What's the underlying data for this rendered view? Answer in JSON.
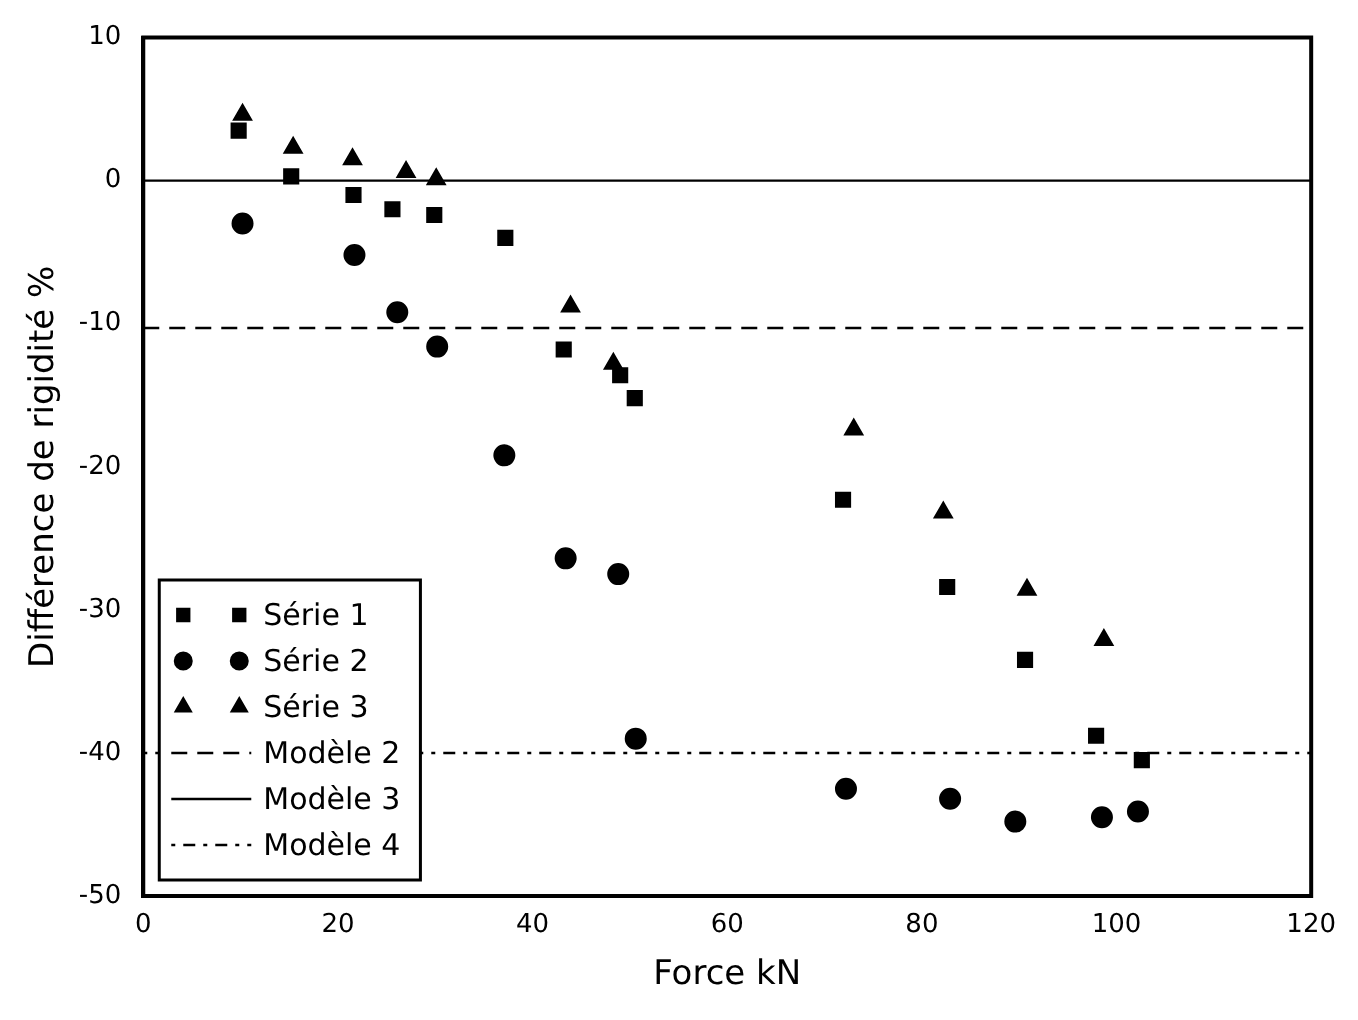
{
  "chart_data": {
    "type": "scatter",
    "xlabel": "Force kN",
    "ylabel": "Différence de rigidité %",
    "xlim": [
      0,
      120
    ],
    "ylim": [
      -50,
      10
    ],
    "xticks": [
      0,
      20,
      40,
      60,
      80,
      100,
      120
    ],
    "yticks": [
      -50,
      -40,
      -30,
      -20,
      -10,
      0,
      10
    ],
    "grid": false,
    "legend": "bottom left",
    "series": [
      {
        "name": "Série 1",
        "color": "#000000",
        "marker": "square",
        "x": [
          9.8,
          15.2,
          21.6,
          25.6,
          29.9,
          37.2,
          43.2,
          49.0,
          50.5,
          71.9,
          82.6,
          90.6,
          97.9,
          102.6
        ],
        "values": [
          3.5,
          0.3,
          -1.0,
          -2.0,
          -2.4,
          -4.0,
          -11.8,
          -13.6,
          -15.2,
          -22.3,
          -28.4,
          -33.5,
          -38.8,
          -40.5
        ]
      },
      {
        "name": "Série 2",
        "color": "#000000",
        "marker": "circle",
        "x": [
          10.2,
          21.7,
          26.1,
          30.2,
          37.1,
          43.4,
          48.8,
          50.6,
          72.2,
          82.9,
          89.6,
          98.5,
          102.2
        ],
        "values": [
          -3.0,
          -5.2,
          -9.2,
          -11.6,
          -19.2,
          -26.4,
          -27.5,
          -39.0,
          -42.5,
          -43.2,
          -44.8,
          -44.5,
          -44.1
        ]
      },
      {
        "name": "Série 3",
        "color": "#000000",
        "marker": "triangle",
        "x": [
          10.2,
          15.4,
          21.5,
          27.0,
          30.1,
          37.4,
          43.9,
          48.3,
          73.0,
          82.2,
          90.8,
          98.7
        ],
        "values": [
          4.6,
          2.3,
          1.5,
          0.6,
          0.1,
          null,
          -8.8,
          -12.8,
          -17.4,
          -23.2,
          -28.6,
          -32.1
        ]
      }
    ],
    "ref_lines": [
      {
        "axis": "y",
        "value": -10.3,
        "label": "Modèle 2",
        "color": "#000000",
        "line_style": "dashed"
      },
      {
        "axis": "y",
        "value": 0,
        "label": "Modèle 3",
        "color": "#000000",
        "line_style": "solid"
      },
      {
        "axis": "y",
        "value": -40,
        "label": "Modèle 4",
        "color": "#000000",
        "line_style": "dotted"
      }
    ]
  }
}
